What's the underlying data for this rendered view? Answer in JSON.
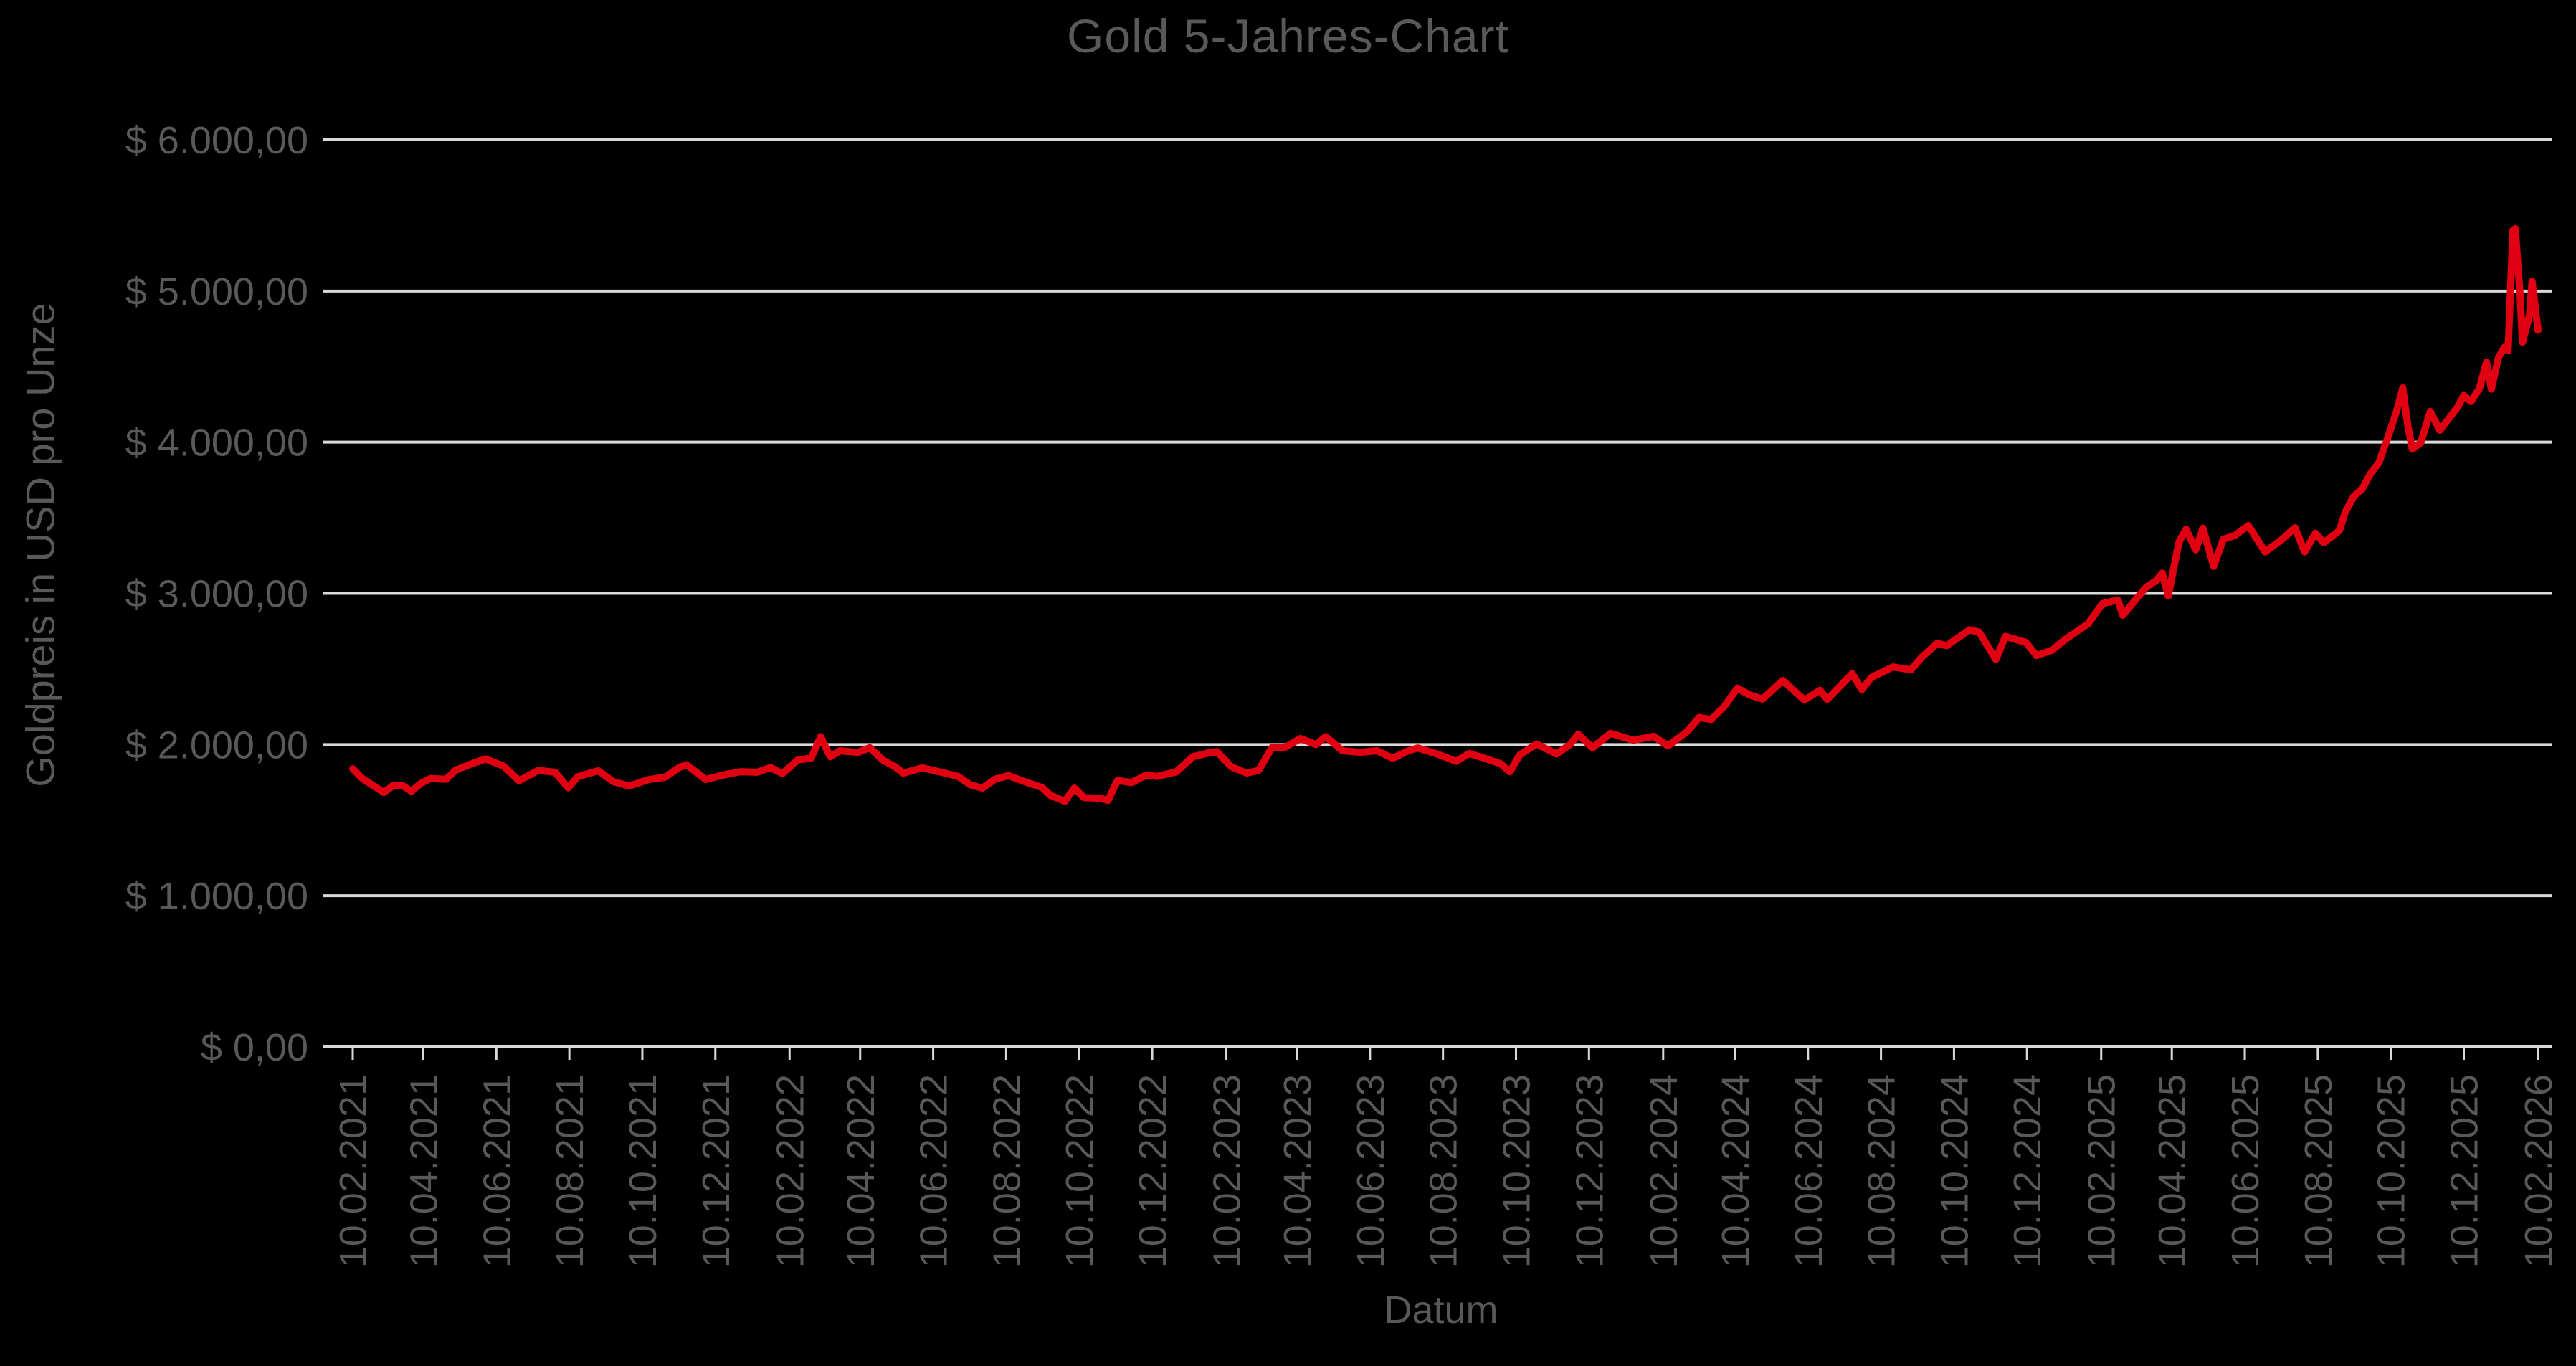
{
  "chart": {
    "title": "Gold 5-Jahres-Chart",
    "y_axis_title": "Goldpreis in USD pro Unze",
    "x_axis_title": "Datum",
    "colors": {
      "background": "#000000",
      "text": "#595959",
      "gridline": "#d9d9d9",
      "axis": "#d9d9d9",
      "series": "#e00012"
    }
  },
  "chart_data": {
    "type": "line",
    "title": "Gold 5-Jahres-Chart",
    "xlabel": "Datum",
    "ylabel": "Goldpreis in USD pro Unze",
    "ylim": [
      0,
      6000
    ],
    "grid": true,
    "legend": false,
    "y_ticks": [
      [
        "$ 0,00",
        0
      ],
      [
        "$ 1.000,00",
        1000
      ],
      [
        "$ 2.000,00",
        2000
      ],
      [
        "$ 3.000,00",
        3000
      ],
      [
        "$ 4.000,00",
        4000
      ],
      [
        "$ 5.000,00",
        5000
      ],
      [
        "$ 6.000,00",
        6000
      ]
    ],
    "x_tick_labels": [
      "10.02.2021",
      "10.04.2021",
      "10.06.2021",
      "10.08.2021",
      "10.10.2021",
      "10.12.2021",
      "10.02.2022",
      "10.04.2022",
      "10.06.2022",
      "10.08.2022",
      "10.10.2022",
      "10.12.2022",
      "10.02.2023",
      "10.04.2023",
      "10.06.2023",
      "10.08.2023",
      "10.10.2023",
      "10.12.2023",
      "10.02.2024",
      "10.04.2024",
      "10.06.2024",
      "10.08.2024",
      "10.10.2024",
      "10.12.2024",
      "10.02.2025",
      "10.04.2025",
      "10.06.2025",
      "10.08.2025",
      "10.10.2025",
      "10.12.2025",
      "10.02.2026"
    ],
    "x_range": [
      "10.02.2021",
      "10.02.2026"
    ],
    "series": [
      {
        "name": "Goldpreis in USD pro Unze",
        "color": "#e00012",
        "points": [
          [
            "2021-02-10",
            1840
          ],
          [
            "2021-02-18",
            1776
          ],
          [
            "2021-02-26",
            1734
          ],
          [
            "2021-03-08",
            1683
          ],
          [
            "2021-03-16",
            1731
          ],
          [
            "2021-03-24",
            1727
          ],
          [
            "2021-03-31",
            1691
          ],
          [
            "2021-04-08",
            1744
          ],
          [
            "2021-04-16",
            1776
          ],
          [
            "2021-04-29",
            1770
          ],
          [
            "2021-05-07",
            1831
          ],
          [
            "2021-05-19",
            1869
          ],
          [
            "2021-06-01",
            1905
          ],
          [
            "2021-06-16",
            1858
          ],
          [
            "2021-06-29",
            1761
          ],
          [
            "2021-07-15",
            1829
          ],
          [
            "2021-07-29",
            1817
          ],
          [
            "2021-08-09",
            1714
          ],
          [
            "2021-08-17",
            1787
          ],
          [
            "2021-09-03",
            1827
          ],
          [
            "2021-09-16",
            1754
          ],
          [
            "2021-09-29",
            1726
          ],
          [
            "2021-10-15",
            1768
          ],
          [
            "2021-10-29",
            1784
          ],
          [
            "2021-11-10",
            1850
          ],
          [
            "2021-11-16",
            1866
          ],
          [
            "2021-12-02",
            1769
          ],
          [
            "2021-12-17",
            1799
          ],
          [
            "2021-12-31",
            1821
          ],
          [
            "2022-01-14",
            1817
          ],
          [
            "2022-01-25",
            1848
          ],
          [
            "2022-02-04",
            1808
          ],
          [
            "2022-02-17",
            1899
          ],
          [
            "2022-02-28",
            1909
          ],
          [
            "2022-03-08",
            2052
          ],
          [
            "2022-03-16",
            1919
          ],
          [
            "2022-03-24",
            1959
          ],
          [
            "2022-04-08",
            1948
          ],
          [
            "2022-04-18",
            1979
          ],
          [
            "2022-04-29",
            1897
          ],
          [
            "2022-05-09",
            1854
          ],
          [
            "2022-05-16",
            1811
          ],
          [
            "2022-06-01",
            1846
          ],
          [
            "2022-06-13",
            1824
          ],
          [
            "2022-07-01",
            1789
          ],
          [
            "2022-07-11",
            1734
          ],
          [
            "2022-07-21",
            1712
          ],
          [
            "2022-08-01",
            1772
          ],
          [
            "2022-08-12",
            1795
          ],
          [
            "2022-08-25",
            1756
          ],
          [
            "2022-09-09",
            1716
          ],
          [
            "2022-09-16",
            1664
          ],
          [
            "2022-09-28",
            1625
          ],
          [
            "2022-10-06",
            1712
          ],
          [
            "2022-10-14",
            1649
          ],
          [
            "2022-10-28",
            1644
          ],
          [
            "2022-11-03",
            1630
          ],
          [
            "2022-11-11",
            1762
          ],
          [
            "2022-11-23",
            1749
          ],
          [
            "2022-12-05",
            1799
          ],
          [
            "2022-12-14",
            1789
          ],
          [
            "2022-12-30",
            1819
          ],
          [
            "2023-01-13",
            1919
          ],
          [
            "2023-01-26",
            1944
          ],
          [
            "2023-02-02",
            1953
          ],
          [
            "2023-02-14",
            1854
          ],
          [
            "2023-02-27",
            1811
          ],
          [
            "2023-03-09",
            1830
          ],
          [
            "2023-03-20",
            1979
          ],
          [
            "2023-03-30",
            1978
          ],
          [
            "2023-04-13",
            2040
          ],
          [
            "2023-04-26",
            1999
          ],
          [
            "2023-05-04",
            2053
          ],
          [
            "2023-05-18",
            1959
          ],
          [
            "2023-06-02",
            1949
          ],
          [
            "2023-06-16",
            1959
          ],
          [
            "2023-06-29",
            1909
          ],
          [
            "2023-07-12",
            1959
          ],
          [
            "2023-07-20",
            1977
          ],
          [
            "2023-08-04",
            1941
          ],
          [
            "2023-08-21",
            1889
          ],
          [
            "2023-09-01",
            1941
          ],
          [
            "2023-09-14",
            1908
          ],
          [
            "2023-09-27",
            1874
          ],
          [
            "2023-10-05",
            1820
          ],
          [
            "2023-10-13",
            1930
          ],
          [
            "2023-10-27",
            2004
          ],
          [
            "2023-11-13",
            1938
          ],
          [
            "2023-11-24",
            1999
          ],
          [
            "2023-12-01",
            2068
          ],
          [
            "2023-12-13",
            1979
          ],
          [
            "2023-12-28",
            2074
          ],
          [
            "2024-01-16",
            2028
          ],
          [
            "2024-02-02",
            2054
          ],
          [
            "2024-02-14",
            1991
          ],
          [
            "2024-03-01",
            2086
          ],
          [
            "2024-03-11",
            2179
          ],
          [
            "2024-03-21",
            2166
          ],
          [
            "2024-04-01",
            2251
          ],
          [
            "2024-04-12",
            2374
          ],
          [
            "2024-04-22",
            2329
          ],
          [
            "2024-05-03",
            2301
          ],
          [
            "2024-05-20",
            2424
          ],
          [
            "2024-06-07",
            2294
          ],
          [
            "2024-06-20",
            2359
          ],
          [
            "2024-06-26",
            2299
          ],
          [
            "2024-07-17",
            2469
          ],
          [
            "2024-07-25",
            2364
          ],
          [
            "2024-08-02",
            2444
          ],
          [
            "2024-08-20",
            2514
          ],
          [
            "2024-09-04",
            2494
          ],
          [
            "2024-09-13",
            2578
          ],
          [
            "2024-09-26",
            2669
          ],
          [
            "2024-10-04",
            2654
          ],
          [
            "2024-10-23",
            2759
          ],
          [
            "2024-10-31",
            2744
          ],
          [
            "2024-11-14",
            2563
          ],
          [
            "2024-11-22",
            2716
          ],
          [
            "2024-12-09",
            2676
          ],
          [
            "2024-12-18",
            2589
          ],
          [
            "2024-12-31",
            2624
          ],
          [
            "2025-01-10",
            2690
          ],
          [
            "2025-01-30",
            2799
          ],
          [
            "2025-02-11",
            2932
          ],
          [
            "2025-02-24",
            2956
          ],
          [
            "2025-02-28",
            2855
          ],
          [
            "2025-03-14",
            2989
          ],
          [
            "2025-03-20",
            3044
          ],
          [
            "2025-03-28",
            3084
          ],
          [
            "2025-04-02",
            3134
          ],
          [
            "2025-04-07",
            2983
          ],
          [
            "2025-04-16",
            3339
          ],
          [
            "2025-04-22",
            3424
          ],
          [
            "2025-04-30",
            3288
          ],
          [
            "2025-05-06",
            3431
          ],
          [
            "2025-05-15",
            3178
          ],
          [
            "2025-05-23",
            3357
          ],
          [
            "2025-06-02",
            3384
          ],
          [
            "2025-06-13",
            3448
          ],
          [
            "2025-06-27",
            3274
          ],
          [
            "2025-07-11",
            3356
          ],
          [
            "2025-07-22",
            3434
          ],
          [
            "2025-07-30",
            3274
          ],
          [
            "2025-08-08",
            3398
          ],
          [
            "2025-08-15",
            3336
          ],
          [
            "2025-08-28",
            3414
          ],
          [
            "2025-09-02",
            3539
          ],
          [
            "2025-09-09",
            3641
          ],
          [
            "2025-09-16",
            3689
          ],
          [
            "2025-09-23",
            3791
          ],
          [
            "2025-09-30",
            3864
          ],
          [
            "2025-10-08",
            4041
          ],
          [
            "2025-10-15",
            4209
          ],
          [
            "2025-10-20",
            4359
          ],
          [
            "2025-10-24",
            4118
          ],
          [
            "2025-10-28",
            3954
          ],
          [
            "2025-11-04",
            3996
          ],
          [
            "2025-11-12",
            4203
          ],
          [
            "2025-11-20",
            4079
          ],
          [
            "2025-11-28",
            4161
          ],
          [
            "2025-12-05",
            4234
          ],
          [
            "2025-12-10",
            4309
          ],
          [
            "2025-12-16",
            4269
          ],
          [
            "2025-12-23",
            4354
          ],
          [
            "2025-12-29",
            4529
          ],
          [
            "2026-01-02",
            4351
          ],
          [
            "2026-01-08",
            4561
          ],
          [
            "2026-01-13",
            4629
          ],
          [
            "2026-01-16",
            4604
          ],
          [
            "2026-01-20",
            5399
          ],
          [
            "2026-01-22",
            5413
          ],
          [
            "2026-01-26",
            4979
          ],
          [
            "2026-01-28",
            4661
          ],
          [
            "2026-02-03",
            4844
          ],
          [
            "2026-02-05",
            5064
          ],
          [
            "2026-02-10",
            4741
          ]
        ]
      }
    ]
  }
}
